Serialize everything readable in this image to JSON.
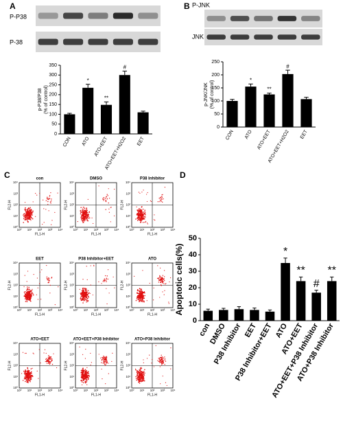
{
  "panel_labels": [
    "A",
    "B",
    "C",
    "D"
  ],
  "blots": {
    "A": [
      "P-P38",
      "P-38"
    ],
    "B": [
      "P-JNK",
      "JNK"
    ]
  },
  "chart_data": [
    {
      "type": "bar",
      "ylabel": [
        "p-P38/P38",
        "(% of control)"
      ],
      "categories": [
        "CON",
        "ATO",
        "ATO+EET",
        "ATO+EET+H2O2",
        "EET"
      ],
      "values": [
        100,
        235,
        148,
        300,
        110
      ],
      "errors": [
        5,
        18,
        15,
        20,
        6
      ],
      "significance": [
        null,
        "*",
        "**",
        "#",
        null
      ],
      "ylim": [
        0,
        350
      ],
      "yticks": [
        0,
        50,
        100,
        150,
        200,
        250,
        300,
        350
      ],
      "color": "#000000"
    },
    {
      "type": "bar",
      "ylabel": [
        "p-JNK/JNK",
        "(% of control)"
      ],
      "categories": [
        "CON",
        "ATO",
        "ATO+EET",
        "ATO+EET+H2O2",
        "EET"
      ],
      "values": [
        100,
        155,
        125,
        203,
        107
      ],
      "errors": [
        6,
        10,
        5,
        15,
        7
      ],
      "significance": [
        null,
        "*",
        "**",
        "#",
        null
      ],
      "ylim": [
        0,
        250
      ],
      "yticks": [
        0,
        50,
        100,
        150,
        200,
        250
      ],
      "color": "#000000"
    },
    {
      "type": "bar",
      "ylabel": [
        "Apoptotic cells(%)"
      ],
      "categories": [
        "con",
        "DMSO",
        "P38 Inhibitor",
        "EET",
        "P38 Inhibitor+EET",
        "ATO",
        "ATO+EET",
        "ATO+EET+P38 Inhibitor",
        "ATO+P38 Inhibitor"
      ],
      "values": [
        6,
        6.5,
        7,
        6.5,
        5.5,
        35,
        24,
        17,
        24
      ],
      "errors": [
        1,
        1,
        1.5,
        1.2,
        1,
        3,
        2.5,
        1.5,
        2.5
      ],
      "significance": [
        null,
        null,
        null,
        null,
        null,
        "*",
        "**",
        "#",
        "**"
      ],
      "ylim": [
        0,
        50
      ],
      "yticks": [
        0,
        10,
        20,
        30,
        40,
        50
      ],
      "color": "#000000"
    }
  ],
  "flow": {
    "ylabel": "FL2-H",
    "xlabel": "FL1-H",
    "ticks": [
      {
        "value": 0,
        "label": "10⁰"
      },
      {
        "value": 1,
        "label": "10¹"
      },
      {
        "value": 2,
        "label": "10²"
      },
      {
        "value": 3,
        "label": "10³"
      },
      {
        "value": 4,
        "label": "10⁴"
      }
    ],
    "plots": [
      "con",
      "DMSO",
      "P38 Inhibitor",
      "EET",
      "P38 Inhibitor+EET",
      "ATO",
      "ATO+EET",
      "ATO+EET+P38 Inhibitor",
      "ATO+P38 Inhibitor"
    ]
  }
}
